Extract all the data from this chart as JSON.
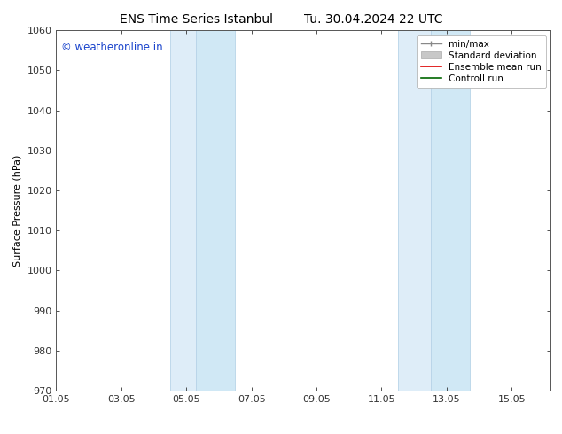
{
  "title_left": "ENS Time Series Istanbul",
  "title_right": "Tu. 30.04.2024 22 UTC",
  "ylabel": "Surface Pressure (hPa)",
  "ylim": [
    970,
    1060
  ],
  "yticks": [
    970,
    980,
    990,
    1000,
    1010,
    1020,
    1030,
    1040,
    1050,
    1060
  ],
  "xlim_days": [
    0.0,
    15.2
  ],
  "xtick_positions": [
    0,
    2,
    4,
    6,
    8,
    10,
    12,
    14
  ],
  "xtick_labels": [
    "01.05",
    "03.05",
    "05.05",
    "07.05",
    "09.05",
    "11.05",
    "13.05",
    "15.05"
  ],
  "shaded_bands": [
    {
      "x_start": 3.5,
      "x_end": 4.3,
      "color": "#deedf8"
    },
    {
      "x_start": 4.3,
      "x_end": 5.5,
      "color": "#d0e8f5"
    },
    {
      "x_start": 10.5,
      "x_end": 11.5,
      "color": "#deedf8"
    },
    {
      "x_start": 11.5,
      "x_end": 12.7,
      "color": "#d0e8f5"
    }
  ],
  "band_edge_color": "#b8d4e8",
  "watermark": "© weatheronline.in",
  "watermark_color": "#1a44cc",
  "background_color": "#ffffff",
  "title_fontsize": 10,
  "ylabel_fontsize": 8,
  "tick_label_fontsize": 8,
  "legend_fontsize": 7.5
}
